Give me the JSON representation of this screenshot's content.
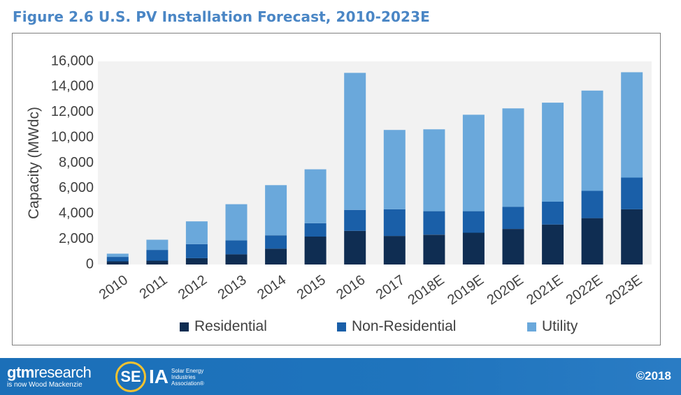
{
  "header": {
    "figure_title": "Figure 2.6 U.S. PV Installation Forecast, 2010-2023E"
  },
  "chart_data": {
    "type": "bar",
    "stacked": true,
    "ylabel": "Capacity (MWdc)",
    "xlabel": "",
    "ylim": [
      0,
      16000
    ],
    "yticks": [
      0,
      2000,
      4000,
      6000,
      8000,
      10000,
      12000,
      14000,
      16000
    ],
    "ytick_labels": [
      "0",
      "2,000",
      "4,000",
      "6,000",
      "8,000",
      "10,000",
      "12,000",
      "14,000",
      "16,000"
    ],
    "categories": [
      "2010",
      "2011",
      "2012",
      "2013",
      "2014",
      "2015",
      "2016",
      "2017",
      "2018E",
      "2019E",
      "2020E",
      "2021E",
      "2022E",
      "2023E"
    ],
    "legend_position": "bottom",
    "series": [
      {
        "name": "Residential",
        "color": "#0f2d52",
        "values": [
          250,
          300,
          500,
          800,
          1250,
          2200,
          2650,
          2250,
          2350,
          2500,
          2800,
          3150,
          3650,
          4350
        ]
      },
      {
        "name": "Non-Residential",
        "color": "#1a5fa8",
        "values": [
          350,
          850,
          1100,
          1100,
          1050,
          1050,
          1650,
          2100,
          1850,
          1700,
          1750,
          1800,
          2150,
          2500
        ]
      },
      {
        "name": "Utility",
        "color": "#6aa8db",
        "values": [
          250,
          800,
          1800,
          2850,
          3950,
          4250,
          10800,
          6250,
          6450,
          7600,
          7750,
          7800,
          7900,
          8300
        ]
      }
    ],
    "plot_background": "#f2f2f2",
    "grid": false
  },
  "footer": {
    "gtm_brand_bold": "gtm",
    "gtm_brand_rest": "research",
    "gtm_subtitle": "is now Wood Mackenzie",
    "seia_letter": "SE",
    "seia_rest": "IA",
    "seia_tagline": "Solar Energy Industries Association®",
    "copyright": "©2018"
  }
}
